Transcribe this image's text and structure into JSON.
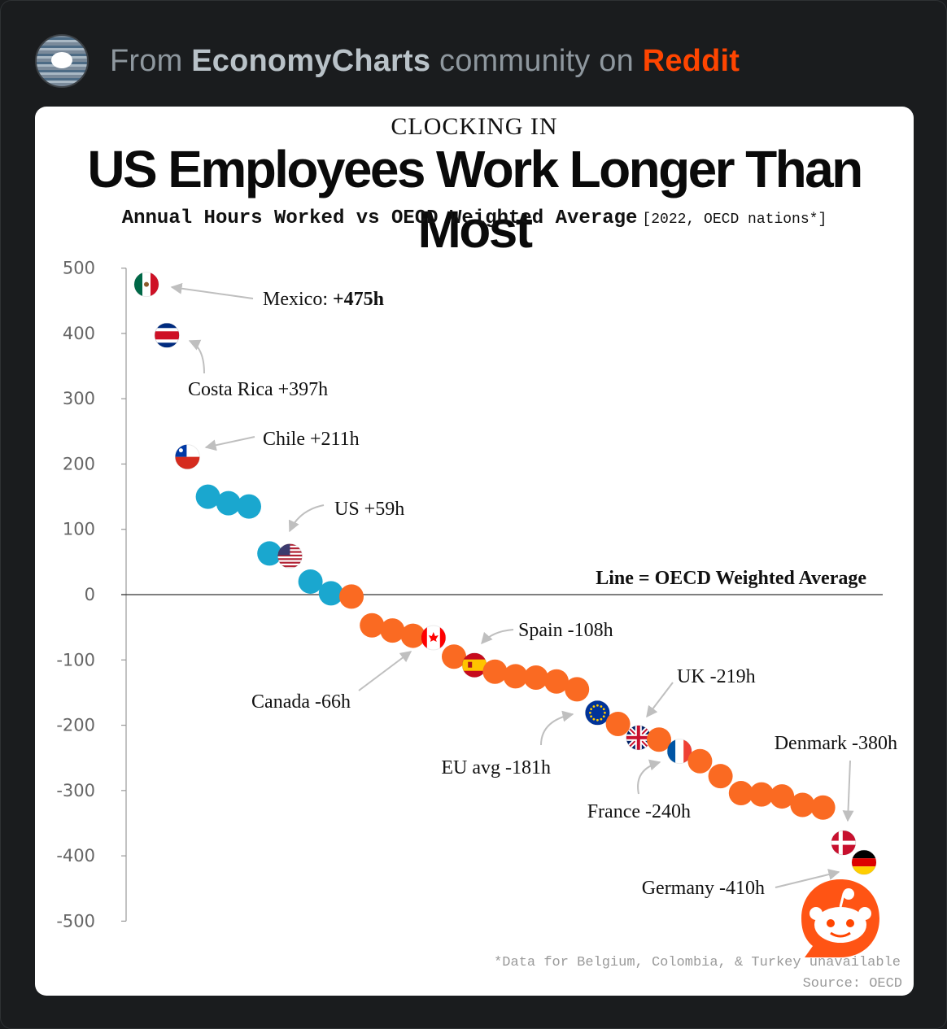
{
  "header": {
    "prefix": "From ",
    "community": "EconomyCharts",
    "middle": " community on ",
    "platform": "Reddit",
    "icon": "community-avatar-icon"
  },
  "card": {
    "kicker": "CLOCKING IN",
    "title": "US Employees Work Longer Than Most",
    "subtitle_main": "Annual Hours Worked vs OECD Weighted Average",
    "subtitle_note": "[2022, OECD nations*]",
    "line_label_bold": "Line = OECD Weighted Average",
    "footnote": "*Data for Belgium, Colombia, & Turkey unavailable",
    "source": "Source: OECD"
  },
  "colors": {
    "above": "#1aa7cf",
    "below": "#fa6a22",
    "axis": "#999999",
    "arrow": "#bfbfbf",
    "reddit": "#ff4500"
  },
  "chart_data": {
    "type": "scatter",
    "title": "US Employees Work Longer Than Most",
    "subtitle": "Annual Hours Worked vs OECD Weighted Average [2022, OECD nations*]",
    "xlabel": "",
    "ylabel": "",
    "ylim": [
      -500,
      500
    ],
    "yticks": [
      500,
      400,
      300,
      200,
      100,
      0,
      -100,
      -200,
      -300,
      -400,
      -500
    ],
    "grid": false,
    "reference_line": {
      "y": 0,
      "label": "Line = OECD Weighted Average"
    },
    "series": [
      {
        "values": [
          475,
          397,
          211,
          150,
          140,
          135,
          63,
          59,
          20,
          2,
          -3,
          -47,
          -55,
          -63,
          -66,
          -95,
          -108,
          -118,
          -125,
          -127,
          -133,
          -145,
          -181,
          -198,
          -219,
          -222,
          -240,
          -255,
          -278,
          -304,
          -306,
          -309,
          -322,
          -326,
          -380,
          -410
        ]
      }
    ],
    "flags": [
      {
        "index": 0,
        "flag": "mexico-flag-icon"
      },
      {
        "index": 1,
        "flag": "costa-rica-flag-icon"
      },
      {
        "index": 2,
        "flag": "chile-flag-icon"
      },
      {
        "index": 7,
        "flag": "us-flag-icon"
      },
      {
        "index": 14,
        "flag": "canada-flag-icon"
      },
      {
        "index": 16,
        "flag": "spain-flag-icon"
      },
      {
        "index": 22,
        "flag": "eu-flag-icon"
      },
      {
        "index": 24,
        "flag": "uk-flag-icon"
      },
      {
        "index": 26,
        "flag": "france-flag-icon"
      },
      {
        "index": 34,
        "flag": "denmark-flag-icon"
      },
      {
        "index": 35,
        "flag": "germany-flag-icon"
      }
    ],
    "annotations": [
      {
        "index": 0,
        "label": "Mexico: ",
        "value_label": "+475h"
      },
      {
        "index": 1,
        "label": "Costa Rica +397h"
      },
      {
        "index": 2,
        "label": "Chile +211h"
      },
      {
        "index": 7,
        "label": "US +59h"
      },
      {
        "index": 14,
        "label": "Canada -66h"
      },
      {
        "index": 16,
        "label": "Spain -108h"
      },
      {
        "index": 22,
        "label": "EU avg -181h"
      },
      {
        "index": 24,
        "label": "UK -219h"
      },
      {
        "index": 26,
        "label": "France -240h"
      },
      {
        "index": 34,
        "label": "Denmark -380h"
      },
      {
        "index": 35,
        "label": "Germany -410h"
      }
    ]
  }
}
